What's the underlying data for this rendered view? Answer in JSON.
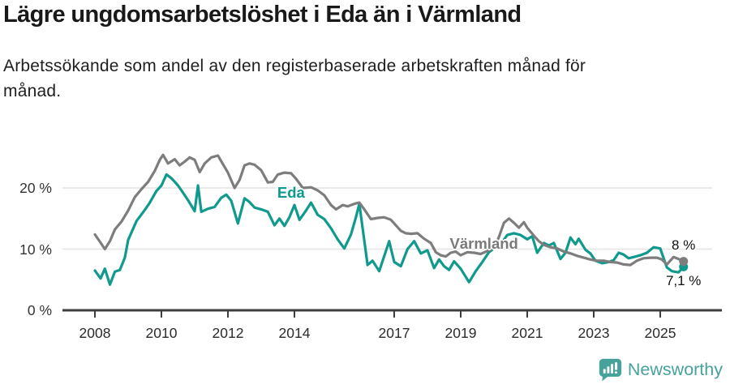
{
  "header": {
    "title": "Lägre ungdomsarbetslöshet i Eda än i Värmland",
    "subtitle_lines": [
      "Arbetssökande som andel av den registerbaserade arbetskraften månad för",
      "månad."
    ]
  },
  "chart_data": {
    "type": "line",
    "title": "Lägre ungdomsarbetslöshet i Eda än i Värmland",
    "xlabel": "",
    "ylabel": "",
    "unit": "%",
    "grid": "horizontal",
    "legend_position": "inline-labels-on-lines",
    "xlim": [
      2007,
      2026.6
    ],
    "ylim": [
      0,
      27
    ],
    "x_ticks": {
      "values": [
        2008,
        2010,
        2012,
        2014,
        2017,
        2019,
        2021,
        2023,
        2025
      ],
      "labels": [
        "2008",
        "2010",
        "2012",
        "2014",
        "2017",
        "2019",
        "2021",
        "2023",
        "2025"
      ]
    },
    "y_ticks": {
      "values": [
        0,
        10,
        20
      ],
      "labels": [
        "0 %",
        "10 %",
        "20 %"
      ]
    },
    "granularity_note": "monthly series 2008 - autumn 2025, values estimated from plot",
    "series": [
      {
        "name": "Eda",
        "color": "#0f9a8d",
        "end_label": "7,1 %",
        "end_value": 7.1,
        "label_anchor": {
          "x": 2013.9,
          "y": 19.2
        },
        "points": [
          [
            2008.0,
            6.5
          ],
          [
            2008.17,
            5.2
          ],
          [
            2008.3,
            6.8
          ],
          [
            2008.45,
            4.2
          ],
          [
            2008.6,
            6.3
          ],
          [
            2008.75,
            6.6
          ],
          [
            2008.9,
            8.6
          ],
          [
            2009.0,
            11.5
          ],
          [
            2009.25,
            14.6
          ],
          [
            2009.5,
            16.4
          ],
          [
            2009.65,
            17.6
          ],
          [
            2009.85,
            19.5
          ],
          [
            2010.0,
            20.4
          ],
          [
            2010.15,
            22.2
          ],
          [
            2010.3,
            21.6
          ],
          [
            2010.5,
            20.4
          ],
          [
            2010.65,
            19.2
          ],
          [
            2010.8,
            18.0
          ],
          [
            2011.0,
            16.2
          ],
          [
            2011.1,
            20.4
          ],
          [
            2011.2,
            16.1
          ],
          [
            2011.4,
            16.6
          ],
          [
            2011.6,
            16.9
          ],
          [
            2011.8,
            18.4
          ],
          [
            2011.95,
            18.9
          ],
          [
            2012.1,
            17.9
          ],
          [
            2012.3,
            14.2
          ],
          [
            2012.5,
            18.3
          ],
          [
            2012.65,
            17.7
          ],
          [
            2012.8,
            16.8
          ],
          [
            2013.0,
            16.5
          ],
          [
            2013.2,
            16.1
          ],
          [
            2013.4,
            13.9
          ],
          [
            2013.55,
            15.0
          ],
          [
            2013.7,
            13.8
          ],
          [
            2013.85,
            15.2
          ],
          [
            2014.0,
            17.2
          ],
          [
            2014.15,
            14.8
          ],
          [
            2014.35,
            16.3
          ],
          [
            2014.5,
            17.6
          ],
          [
            2014.7,
            15.6
          ],
          [
            2014.9,
            14.9
          ],
          [
            2015.1,
            13.4
          ],
          [
            2015.3,
            11.6
          ],
          [
            2015.5,
            10.1
          ],
          [
            2015.7,
            12.4
          ],
          [
            2015.85,
            15.2
          ],
          [
            2015.95,
            17.4
          ],
          [
            2016.2,
            7.4
          ],
          [
            2016.35,
            8.1
          ],
          [
            2016.55,
            6.4
          ],
          [
            2016.85,
            11.3
          ],
          [
            2017.0,
            7.9
          ],
          [
            2017.2,
            7.2
          ],
          [
            2017.4,
            10.0
          ],
          [
            2017.6,
            11.3
          ],
          [
            2017.8,
            9.3
          ],
          [
            2018.0,
            9.8
          ],
          [
            2018.2,
            6.9
          ],
          [
            2018.35,
            8.3
          ],
          [
            2018.5,
            7.2
          ],
          [
            2018.65,
            6.6
          ],
          [
            2018.8,
            8.0
          ],
          [
            2019.0,
            6.8
          ],
          [
            2019.25,
            4.6
          ],
          [
            2019.45,
            6.4
          ],
          [
            2019.65,
            7.9
          ],
          [
            2019.85,
            9.5
          ],
          [
            2020.0,
            10.1
          ],
          [
            2020.2,
            10.8
          ],
          [
            2020.4,
            12.3
          ],
          [
            2020.6,
            12.6
          ],
          [
            2020.8,
            12.3
          ],
          [
            2021.0,
            11.6
          ],
          [
            2021.15,
            12.1
          ],
          [
            2021.3,
            9.4
          ],
          [
            2021.5,
            11.0
          ],
          [
            2021.65,
            10.6
          ],
          [
            2021.8,
            11.0
          ],
          [
            2022.0,
            8.4
          ],
          [
            2022.15,
            9.4
          ],
          [
            2022.3,
            11.9
          ],
          [
            2022.45,
            10.8
          ],
          [
            2022.55,
            11.7
          ],
          [
            2022.75,
            9.9
          ],
          [
            2022.9,
            9.3
          ],
          [
            2023.05,
            8.1
          ],
          [
            2023.25,
            7.7
          ],
          [
            2023.45,
            7.9
          ],
          [
            2023.6,
            8.2
          ],
          [
            2023.75,
            9.4
          ],
          [
            2023.9,
            9.1
          ],
          [
            2024.05,
            8.5
          ],
          [
            2024.2,
            8.7
          ],
          [
            2024.4,
            9.0
          ],
          [
            2024.6,
            9.4
          ],
          [
            2024.8,
            10.3
          ],
          [
            2025.0,
            10.1
          ],
          [
            2025.2,
            7.0
          ],
          [
            2025.35,
            6.4
          ],
          [
            2025.55,
            6.2
          ],
          [
            2025.7,
            7.1
          ]
        ]
      },
      {
        "name": "Värmland",
        "color": "#7d7d7d",
        "end_label": "8 %",
        "end_value": 8.0,
        "label_anchor": {
          "x": 2019.7,
          "y": 10.9
        },
        "points": [
          [
            2008.0,
            12.4
          ],
          [
            2008.15,
            11.2
          ],
          [
            2008.3,
            10.0
          ],
          [
            2008.45,
            11.3
          ],
          [
            2008.6,
            13.2
          ],
          [
            2008.8,
            14.5
          ],
          [
            2009.0,
            16.3
          ],
          [
            2009.2,
            18.5
          ],
          [
            2009.4,
            19.8
          ],
          [
            2009.6,
            21.0
          ],
          [
            2009.8,
            22.8
          ],
          [
            2009.95,
            24.6
          ],
          [
            2010.05,
            25.4
          ],
          [
            2010.2,
            24.0
          ],
          [
            2010.4,
            24.7
          ],
          [
            2010.55,
            23.7
          ],
          [
            2010.7,
            24.3
          ],
          [
            2010.85,
            25.0
          ],
          [
            2011.0,
            24.6
          ],
          [
            2011.15,
            22.6
          ],
          [
            2011.3,
            24.0
          ],
          [
            2011.5,
            25.0
          ],
          [
            2011.7,
            25.3
          ],
          [
            2011.85,
            23.9
          ],
          [
            2012.0,
            22.5
          ],
          [
            2012.2,
            20.0
          ],
          [
            2012.35,
            21.3
          ],
          [
            2012.5,
            23.7
          ],
          [
            2012.65,
            24.0
          ],
          [
            2012.8,
            23.8
          ],
          [
            2013.0,
            22.9
          ],
          [
            2013.2,
            20.9
          ],
          [
            2013.35,
            21.0
          ],
          [
            2013.5,
            22.2
          ],
          [
            2013.7,
            22.5
          ],
          [
            2013.9,
            22.4
          ],
          [
            2014.05,
            21.5
          ],
          [
            2014.25,
            20.0
          ],
          [
            2014.5,
            20.1
          ],
          [
            2014.7,
            19.6
          ],
          [
            2014.9,
            18.8
          ],
          [
            2015.1,
            17.2
          ],
          [
            2015.25,
            16.5
          ],
          [
            2015.45,
            17.2
          ],
          [
            2015.6,
            17.0
          ],
          [
            2015.8,
            17.4
          ],
          [
            2015.95,
            17.6
          ],
          [
            2016.1,
            16.5
          ],
          [
            2016.3,
            14.9
          ],
          [
            2016.5,
            15.1
          ],
          [
            2016.7,
            15.2
          ],
          [
            2016.9,
            14.8
          ],
          [
            2017.05,
            13.9
          ],
          [
            2017.2,
            13.0
          ],
          [
            2017.35,
            12.6
          ],
          [
            2017.5,
            12.5
          ],
          [
            2017.7,
            12.6
          ],
          [
            2017.9,
            11.7
          ],
          [
            2018.1,
            11.0
          ],
          [
            2018.25,
            9.5
          ],
          [
            2018.4,
            9.0
          ],
          [
            2018.55,
            8.8
          ],
          [
            2018.7,
            9.4
          ],
          [
            2018.85,
            9.6
          ],
          [
            2019.0,
            9.0
          ],
          [
            2019.2,
            9.5
          ],
          [
            2019.4,
            9.4
          ],
          [
            2019.6,
            9.2
          ],
          [
            2019.8,
            9.7
          ],
          [
            2020.0,
            10.2
          ],
          [
            2020.15,
            12.0
          ],
          [
            2020.3,
            14.3
          ],
          [
            2020.45,
            15.0
          ],
          [
            2020.6,
            14.3
          ],
          [
            2020.75,
            13.5
          ],
          [
            2020.9,
            14.4
          ],
          [
            2021.0,
            13.5
          ],
          [
            2021.2,
            12.2
          ],
          [
            2021.35,
            11.3
          ],
          [
            2021.5,
            10.7
          ],
          [
            2021.7,
            10.3
          ],
          [
            2021.9,
            10.1
          ],
          [
            2022.1,
            9.6
          ],
          [
            2022.3,
            9.3
          ],
          [
            2022.5,
            8.9
          ],
          [
            2022.7,
            8.6
          ],
          [
            2022.9,
            8.3
          ],
          [
            2023.1,
            8.1
          ],
          [
            2023.3,
            8.1
          ],
          [
            2023.5,
            7.9
          ],
          [
            2023.7,
            7.8
          ],
          [
            2023.9,
            7.5
          ],
          [
            2024.1,
            7.4
          ],
          [
            2024.3,
            8.1
          ],
          [
            2024.5,
            8.5
          ],
          [
            2024.7,
            8.6
          ],
          [
            2024.9,
            8.6
          ],
          [
            2025.05,
            8.3
          ],
          [
            2025.2,
            7.5
          ],
          [
            2025.4,
            8.7
          ],
          [
            2025.55,
            8.4
          ],
          [
            2025.7,
            8.0
          ]
        ]
      }
    ],
    "colors": {
      "eda_line": "#0f9a8d",
      "varmland_line": "#7d7d7d",
      "varmland_label": "#7a7a7a",
      "axis": "#3d3d3d",
      "gridline": "#e4e4e4",
      "brand_teal": "#47a29c"
    }
  },
  "footer": {
    "brand": "Newsworthy"
  }
}
